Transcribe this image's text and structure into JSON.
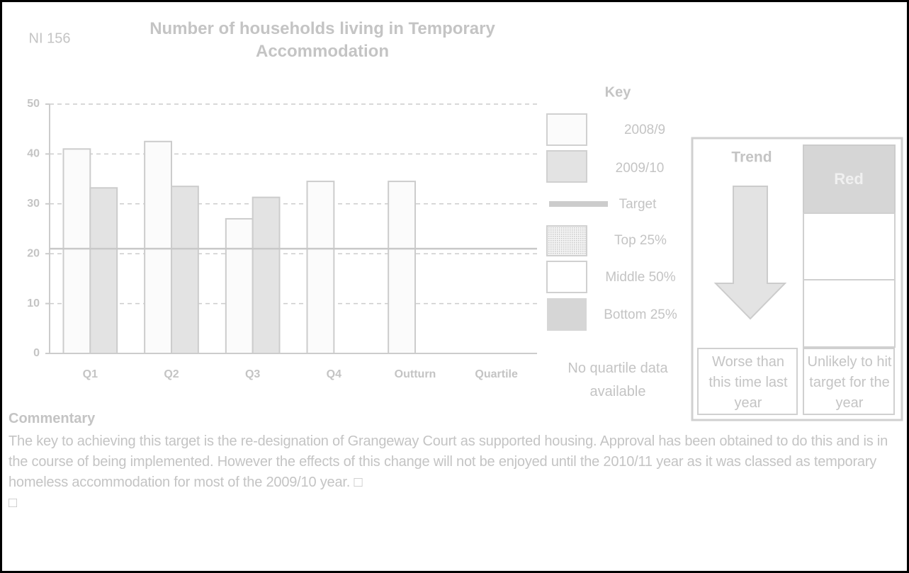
{
  "indicator": "NI 156",
  "chart_data": {
    "type": "bar",
    "title": "Number of households living in Temporary Accommodation",
    "categories": [
      "Q1",
      "Q2",
      "Q3",
      "Q4",
      "Outturn",
      "Quartile"
    ],
    "series": [
      {
        "name": "2008/9",
        "color": "#fbfbfb",
        "values": [
          41,
          42.5,
          27,
          34.5,
          34.5,
          null
        ]
      },
      {
        "name": "2009/10",
        "color": "#e3e3e3",
        "values": [
          33.2,
          33.5,
          31.3,
          null,
          null,
          null
        ]
      }
    ],
    "target": {
      "name": "Target",
      "value": 21,
      "color": "#c8c8c8"
    },
    "ylim": [
      0,
      50
    ],
    "yticks": [
      0,
      10,
      20,
      30,
      40,
      50
    ],
    "grid": true
  },
  "key": {
    "title": "Key",
    "quartiles": [
      "Top 25%",
      "Middle 50%",
      "Bottom 25%"
    ],
    "note": "No quartile data available"
  },
  "trend": {
    "title": "Trend",
    "description": "Worse than this time last year",
    "status": "Red",
    "status_description": "Unlikely to hit target for the year"
  },
  "commentary": {
    "title": "Commentary",
    "paragraphs": [
      "The key to achieving this target is the re-designation of Grangeway Court as supported housing. Approval has been obtained to do this and is in the course of being implemented. However the effects of this change will not be enjoyed until the 2010/11 year as it was classed as temporary homeless accommodation for most of the 2009/10 year. □",
      "□"
    ]
  }
}
